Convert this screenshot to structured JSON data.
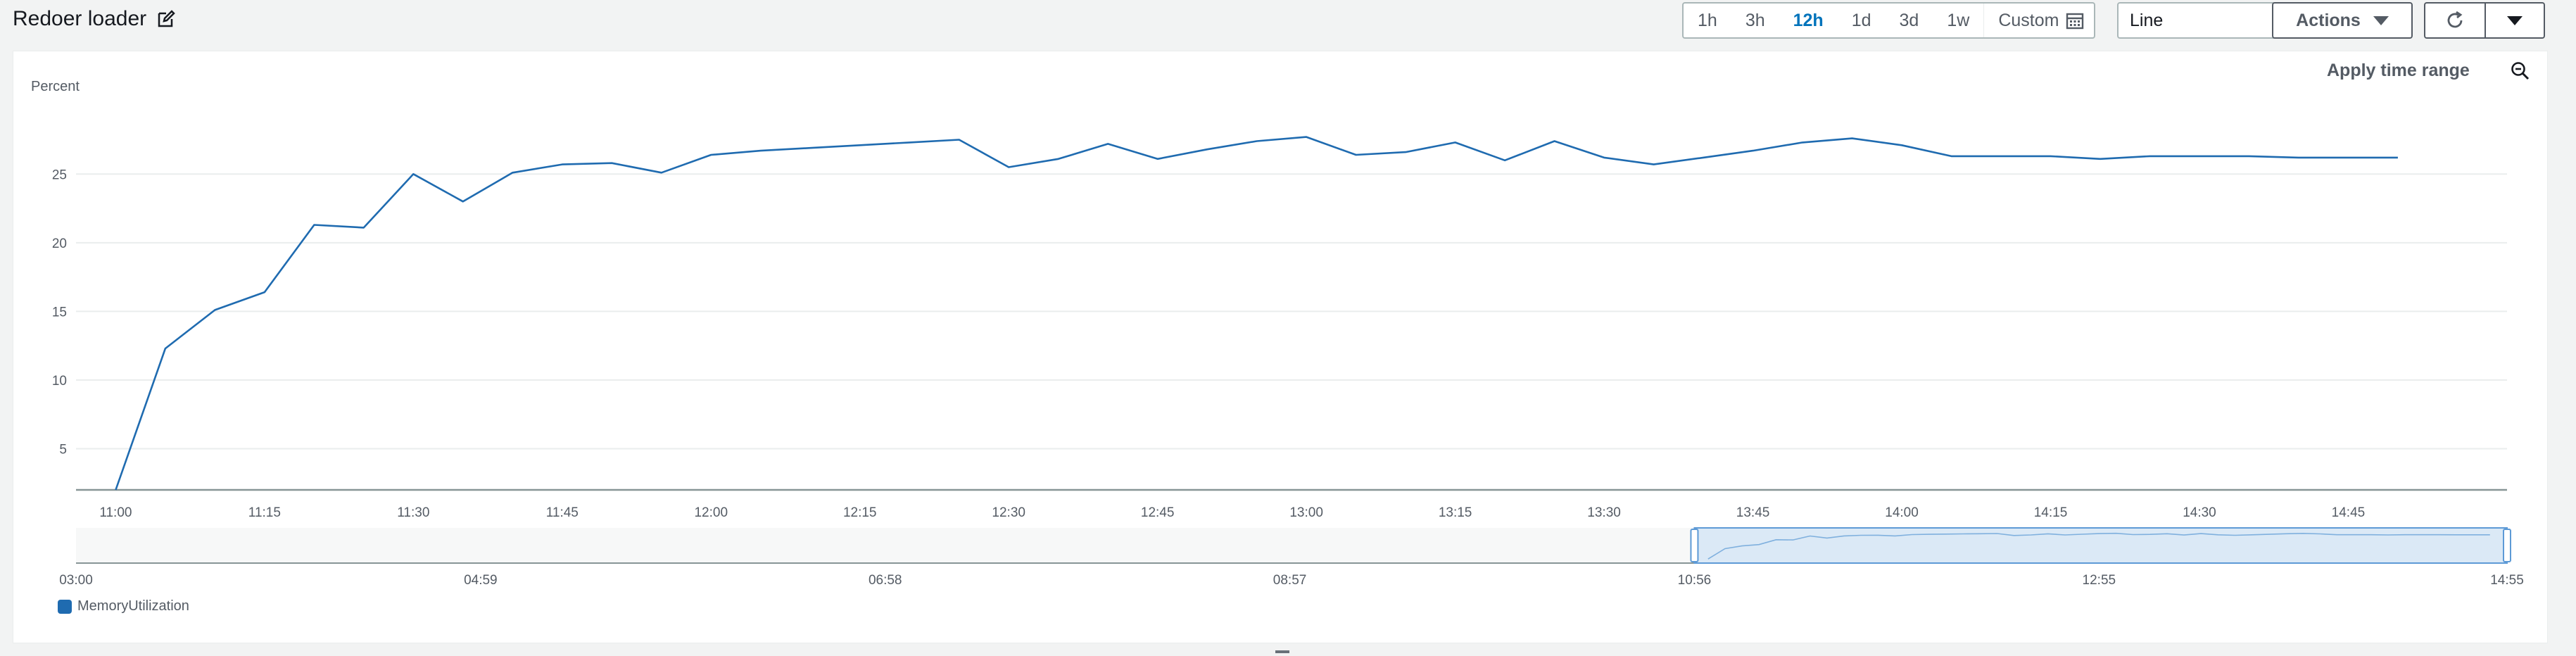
{
  "header": {
    "title": "Redoer loader",
    "time_ranges": [
      {
        "label": "1h",
        "active": false
      },
      {
        "label": "3h",
        "active": false
      },
      {
        "label": "12h",
        "active": true
      },
      {
        "label": "1d",
        "active": false
      },
      {
        "label": "3d",
        "active": false
      },
      {
        "label": "1w",
        "active": false
      }
    ],
    "custom_label": "Custom",
    "view_select": "Line",
    "actions_label": "Actions"
  },
  "toolbar": {
    "apply_time_range": "Apply time range"
  },
  "colors": {
    "series": "#1f6bb0",
    "active_range": "#0073bb",
    "navigator_fill": "#dbe9f6"
  },
  "chart_data": {
    "type": "line",
    "ylabel": "Percent",
    "yticks": [
      5,
      10,
      15,
      20,
      25
    ],
    "ylim": [
      2,
      30.5
    ],
    "xlim": [
      "10:56",
      "15:01"
    ],
    "xticks": [
      "11:00",
      "11:15",
      "11:30",
      "11:45",
      "12:00",
      "12:15",
      "12:30",
      "12:45",
      "13:00",
      "13:15",
      "13:30",
      "13:45",
      "14:00",
      "14:15",
      "14:30",
      "14:45"
    ],
    "series": [
      {
        "name": "MemoryUtilization",
        "x": [
          "11:00",
          "11:05",
          "11:10",
          "11:15",
          "11:20",
          "11:25",
          "11:30",
          "11:35",
          "11:40",
          "11:45",
          "11:50",
          "11:55",
          "12:00",
          "12:05",
          "12:10",
          "12:15",
          "12:20",
          "12:25",
          "12:30",
          "12:35",
          "12:40",
          "12:45",
          "12:50",
          "12:55",
          "13:00",
          "13:05",
          "13:10",
          "13:15",
          "13:20",
          "13:25",
          "13:30",
          "13:35",
          "13:40",
          "13:45",
          "13:50",
          "13:55",
          "14:00",
          "14:05",
          "14:10",
          "14:15",
          "14:20",
          "14:25",
          "14:30",
          "14:35",
          "14:40",
          "14:45",
          "14:50"
        ],
        "values": [
          2.0,
          12.3,
          15.1,
          16.4,
          21.3,
          21.1,
          25.0,
          23.0,
          25.1,
          25.7,
          25.8,
          25.1,
          26.4,
          26.7,
          26.9,
          27.1,
          27.3,
          27.5,
          25.5,
          26.1,
          27.2,
          26.1,
          26.8,
          27.4,
          27.7,
          26.4,
          26.6,
          27.3,
          26.0,
          27.4,
          26.2,
          25.7,
          26.2,
          26.7,
          27.3,
          27.6,
          27.1,
          26.3,
          26.3,
          26.3,
          26.1,
          26.3,
          26.3,
          26.3,
          26.2,
          26.2,
          26.2
        ]
      }
    ],
    "navigator": {
      "tick_labels": [
        "03:00",
        "04:59",
        "06:58",
        "08:57",
        "10:56",
        "12:55",
        "14:55"
      ],
      "window_start": "10:56",
      "window_end": "14:55"
    },
    "legend": [
      "MemoryUtilization"
    ],
    "grid": true
  }
}
